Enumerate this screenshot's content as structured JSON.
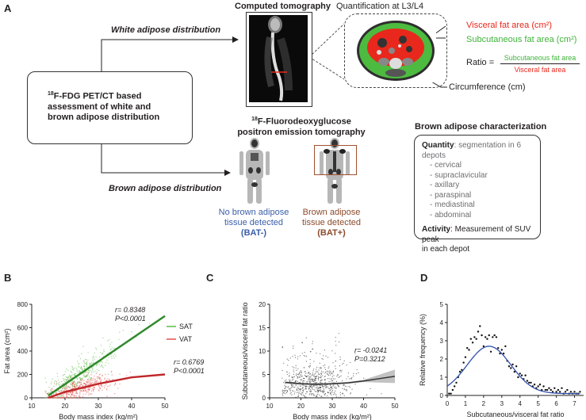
{
  "panelA": {
    "label": "A",
    "ct_title": "Computed tomography",
    "quant_title": "Quantification at L3/L4",
    "white_label": "White adipose distribution",
    "brown_label": "Brown adipose distribution",
    "assessment_prefix": "18",
    "assessment_text_1": "F-FDG PET/CT based",
    "assessment_text_2": "assessment of white and",
    "assessment_text_3": "brown adipose distribution",
    "visceral": "Visceral fat area (cm²)",
    "subcutaneous": "Subcutaneous fat area (cm²)",
    "ratio_label": "Ratio =",
    "ratio_num": "Subcutaneous fat area",
    "ratio_den": "Visceral fat area",
    "circumference": "Circumference (cm)",
    "pet_prefix": "18",
    "pet_title_1": "F-Fluorodeoxyglucose",
    "pet_title_2": "positron emission tomography",
    "no_bat_1": "No brown adipose",
    "no_bat_2": "tissue detected",
    "no_bat_3": "(BAT-)",
    "bat_1": "Brown adipose",
    "bat_2": "tissue detected",
    "bat_3": "(BAT+)",
    "brown_char_title": "Brown adipose characterization",
    "quantity_label": "Quantity",
    "quantity_text": ": segmentation in 6 depots",
    "depots": [
      "- cervical",
      "- supraclavicular",
      "- axillary",
      "- paraspinal",
      "- mediastinal",
      "- abdominal"
    ],
    "activity_label": "Activity",
    "activity_text_1": ": Measurement of SUV peak",
    "activity_text_2": "in each depot"
  },
  "chart_data": [
    {
      "panel": "B",
      "type": "scatter",
      "xlabel": "Body mass index (kg/m²)",
      "ylabel": "Fat area (cm²)",
      "xlim": [
        10,
        50
      ],
      "ylim": [
        0,
        800
      ],
      "xticks": [
        10,
        20,
        30,
        40,
        50
      ],
      "yticks": [
        0,
        200,
        400,
        600,
        800
      ],
      "series": [
        {
          "name": "SAT",
          "color": "#5dbb47",
          "fit": [
            [
              15,
              20
            ],
            [
              50,
              700
            ]
          ],
          "r": "r= 0.8348",
          "p": "P<0.0001"
        },
        {
          "name": "VAT",
          "color": "#e84a4a",
          "fit": [
            [
              15,
              0
            ],
            [
              20,
              50
            ],
            [
              30,
              120
            ],
            [
              40,
              175
            ],
            [
              50,
              200
            ]
          ],
          "r": "r= 0.6769",
          "p": "P<0.0001"
        }
      ]
    },
    {
      "panel": "C",
      "type": "scatter",
      "xlabel": "Body mass index (kg/m²)",
      "ylabel": "Subcutaneous/visceral fat ratio",
      "xlim": [
        10,
        50
      ],
      "ylim": [
        0,
        20
      ],
      "xticks": [
        10,
        20,
        30,
        40,
        50
      ],
      "yticks": [
        0,
        5,
        10,
        15,
        20
      ],
      "fit": [
        [
          15,
          3.3
        ],
        [
          20,
          3.0
        ],
        [
          25,
          2.9
        ],
        [
          30,
          3.0
        ],
        [
          35,
          3.2
        ],
        [
          40,
          3.6
        ],
        [
          45,
          4.1
        ],
        [
          50,
          4.6
        ]
      ],
      "r": "r= -0.0241",
      "p": "P=0.3212"
    },
    {
      "panel": "D",
      "type": "scatter",
      "xlabel": "Subcutaneous/visceral fat ratio",
      "ylabel": "Relative frequency (%)",
      "xlim": [
        0,
        7.5
      ],
      "ylim": [
        0,
        5
      ],
      "xticks": [
        0,
        1,
        2,
        3,
        4,
        5,
        6,
        7
      ],
      "yticks": [
        0,
        1,
        2,
        3,
        4,
        5
      ],
      "points": [
        [
          0.1,
          0.1
        ],
        [
          0.2,
          0.1
        ],
        [
          0.3,
          0.3
        ],
        [
          0.4,
          0.5
        ],
        [
          0.5,
          0.7
        ],
        [
          0.6,
          1.0
        ],
        [
          0.7,
          1.3
        ],
        [
          0.8,
          1.4
        ],
        [
          0.9,
          1.8
        ],
        [
          1.0,
          2.1
        ],
        [
          1.1,
          2.6
        ],
        [
          1.2,
          2.5
        ],
        [
          1.3,
          3.1
        ],
        [
          1.4,
          2.9
        ],
        [
          1.5,
          3.2
        ],
        [
          1.6,
          3.1
        ],
        [
          1.7,
          3.5
        ],
        [
          1.8,
          3.8
        ],
        [
          1.9,
          3.3
        ],
        [
          2.0,
          2.7
        ],
        [
          2.1,
          3.2
        ],
        [
          2.2,
          3.1
        ],
        [
          2.3,
          3.3
        ],
        [
          2.4,
          2.4
        ],
        [
          2.5,
          3.2
        ],
        [
          2.6,
          3.3
        ],
        [
          2.7,
          3.2
        ],
        [
          2.8,
          2.6
        ],
        [
          2.9,
          2.3
        ],
        [
          3.0,
          2.5
        ],
        [
          3.1,
          2.3
        ],
        [
          3.2,
          2.7
        ],
        [
          3.3,
          1.9
        ],
        [
          3.4,
          1.6
        ],
        [
          3.5,
          1.5
        ],
        [
          3.6,
          1.7
        ],
        [
          3.7,
          1.3
        ],
        [
          3.8,
          1.6
        ],
        [
          3.9,
          1.0
        ],
        [
          4.0,
          1.2
        ],
        [
          4.1,
          1.1
        ],
        [
          4.2,
          0.9
        ],
        [
          4.3,
          1.1
        ],
        [
          4.4,
          0.8
        ],
        [
          4.5,
          0.7
        ],
        [
          4.6,
          0.7
        ],
        [
          4.7,
          0.5
        ],
        [
          4.8,
          0.6
        ],
        [
          4.9,
          0.4
        ],
        [
          5.0,
          0.5
        ],
        [
          5.1,
          0.6
        ],
        [
          5.2,
          0.3
        ],
        [
          5.3,
          0.5
        ],
        [
          5.4,
          0.3
        ],
        [
          5.5,
          0.3
        ],
        [
          5.6,
          0.4
        ],
        [
          5.7,
          0.3
        ],
        [
          5.8,
          0.2
        ],
        [
          5.9,
          0.4
        ],
        [
          6.0,
          0.2
        ],
        [
          6.1,
          0.3
        ],
        [
          6.2,
          0.2
        ],
        [
          6.3,
          0.4
        ],
        [
          6.4,
          0.1
        ],
        [
          6.5,
          0.2
        ],
        [
          6.6,
          0.3
        ],
        [
          6.7,
          0.1
        ],
        [
          6.8,
          0.2
        ],
        [
          6.9,
          0.1
        ],
        [
          7.0,
          0.2
        ],
        [
          7.1,
          0.1
        ],
        [
          7.2,
          0.1
        ],
        [
          7.3,
          0.2
        ]
      ],
      "fit_peak": [
        2.3,
        2.7
      ]
    }
  ],
  "panel_labels": {
    "B": "B",
    "C": "C",
    "D": "D"
  },
  "legend": {
    "sat": "SAT",
    "vat": "VAT"
  }
}
